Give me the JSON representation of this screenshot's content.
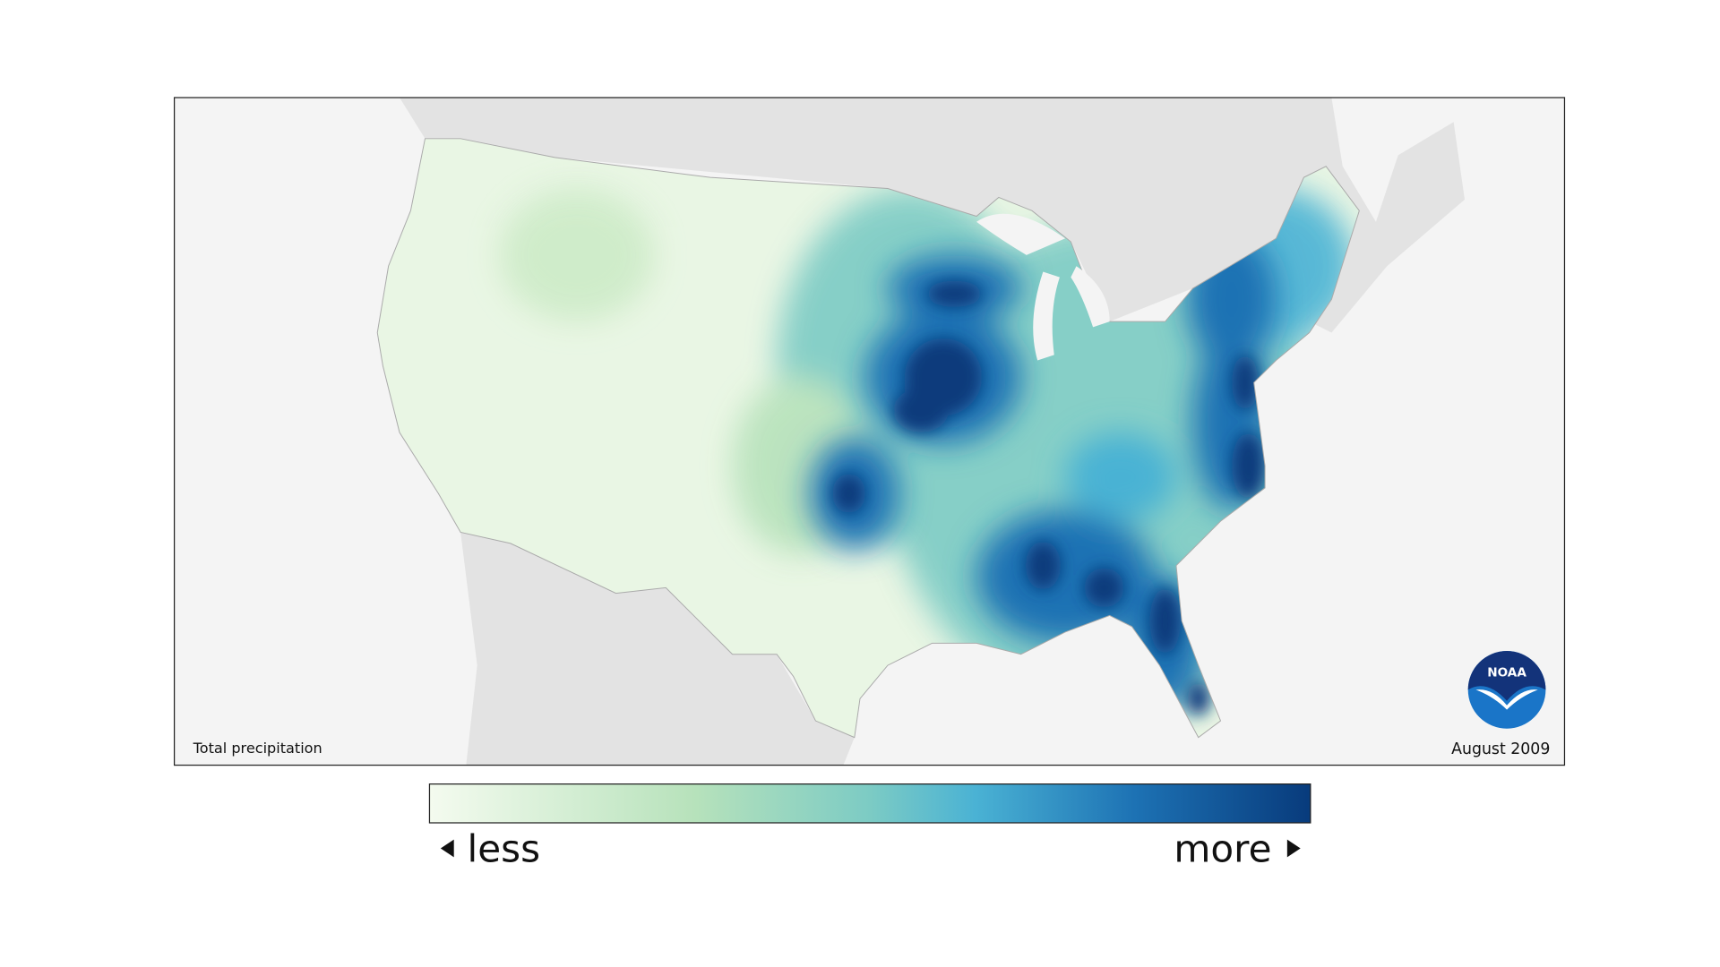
{
  "map": {
    "caption_left": "Total precipitation",
    "caption_right": "August 2009",
    "logo": "NOAA"
  },
  "legend": {
    "low": "less",
    "high": "more"
  }
}
